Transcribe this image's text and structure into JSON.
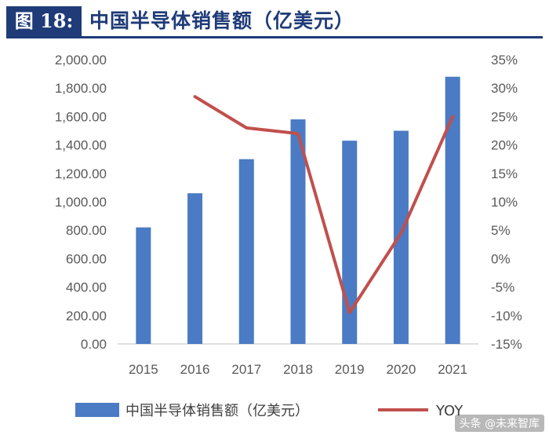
{
  "figure": {
    "label": "图 18:",
    "title": "中国半导体销售额（亿美元）"
  },
  "chart_data": {
    "type": "bar",
    "categories": [
      "2015",
      "2016",
      "2017",
      "2018",
      "2019",
      "2020",
      "2021"
    ],
    "series": [
      {
        "name": "中国半导体销售额（亿美元）",
        "type": "bar",
        "axis": "left",
        "color": "#4a7bc4",
        "values": [
          820,
          1060,
          1300,
          1580,
          1430,
          1500,
          1880
        ]
      },
      {
        "name": "YOY",
        "type": "line",
        "axis": "right",
        "color": "#c0504d",
        "values": [
          null,
          28.5,
          23.0,
          22.0,
          -9.5,
          4.5,
          25.0
        ]
      }
    ],
    "y_left": {
      "min": 0,
      "max": 2000,
      "ticks": [
        "0.00",
        "200.00",
        "400.00",
        "600.00",
        "800.00",
        "1,000.00",
        "1,200.00",
        "1,400.00",
        "1,600.00",
        "1,800.00",
        "2,000.00"
      ]
    },
    "y_right": {
      "min": -15,
      "max": 35,
      "ticks": [
        "-15%",
        "-10%",
        "-5%",
        "0%",
        "5%",
        "10%",
        "15%",
        "20%",
        "25%",
        "30%",
        "35%"
      ]
    },
    "grid": false,
    "legend_position": "bottom"
  },
  "legend": {
    "bar_label": "中国半导体销售额（亿美元）",
    "line_label": "YOY"
  },
  "watermark": "头条 @未来智库"
}
